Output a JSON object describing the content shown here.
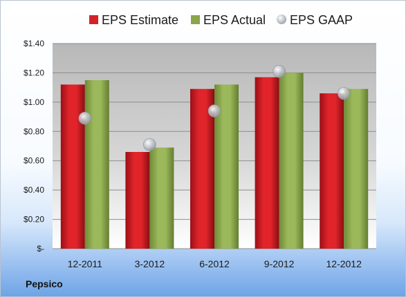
{
  "company": "Pepsico",
  "chart_data": {
    "type": "bar",
    "categories": [
      "12-2011",
      "3-2012",
      "6-2012",
      "9-2012",
      "12-2012"
    ],
    "series": [
      {
        "name": "EPS Estimate",
        "kind": "bar",
        "color": "#d42227",
        "values": [
          1.12,
          0.66,
          1.09,
          1.17,
          1.06
        ]
      },
      {
        "name": "EPS Actual",
        "kind": "bar",
        "color": "#8aa64a",
        "values": [
          1.15,
          0.69,
          1.12,
          1.2,
          1.09
        ]
      },
      {
        "name": "EPS GAAP",
        "kind": "point",
        "color": "#b3b9c0",
        "values": [
          0.89,
          0.71,
          0.94,
          1.21,
          1.06
        ]
      }
    ],
    "y_ticks": [
      "$-",
      "$0.20",
      "$0.40",
      "$0.60",
      "$0.80",
      "$1.00",
      "$1.20",
      "$1.40"
    ],
    "ylim": [
      0,
      1.4
    ],
    "grid": true,
    "legend_position": "top"
  }
}
